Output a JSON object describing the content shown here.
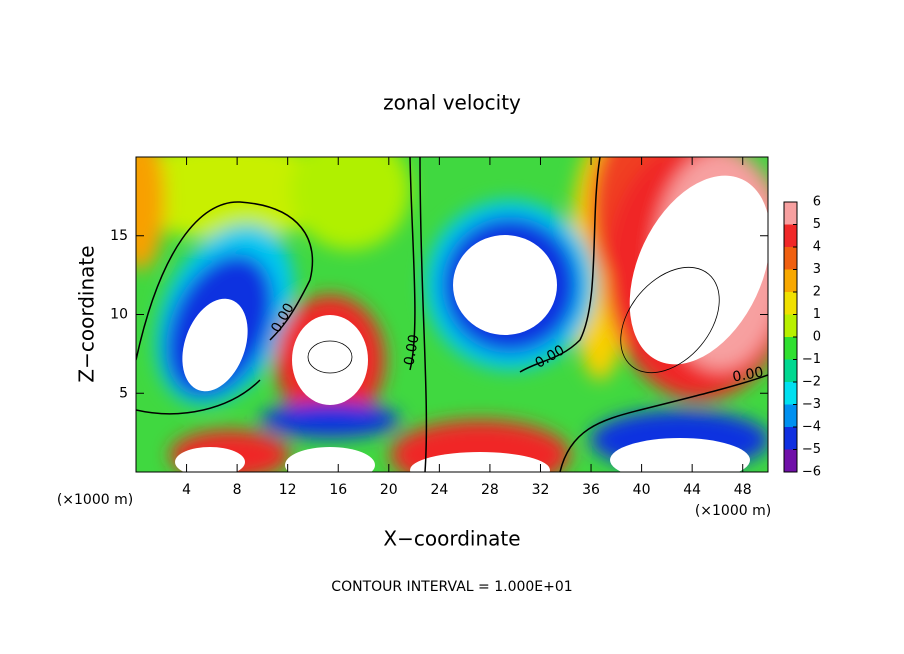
{
  "chart_data": {
    "type": "contour",
    "title": "zonal velocity",
    "x_label": "X−coordinate",
    "y_label": "Z−coordinate",
    "x_unit": "(×1000 m)",
    "y_unit": "(×1000 m)",
    "xlim": [
      0,
      50
    ],
    "ylim": [
      0,
      20
    ],
    "xticks": [
      4,
      8,
      12,
      16,
      20,
      24,
      28,
      32,
      36,
      40,
      44,
      48
    ],
    "yticks": [
      5,
      10,
      15
    ],
    "colorbar": {
      "lim": [
        -6,
        6
      ],
      "ticks": [
        6,
        5,
        4,
        3,
        2,
        1,
        0,
        {
          "value": -1,
          "label": "−1"
        },
        {
          "value": -2,
          "label": "−2"
        },
        {
          "value": -3,
          "label": "−3"
        },
        {
          "value": -4,
          "label": "−4"
        },
        {
          "value": -5,
          "label": "−5"
        },
        {
          "value": -6,
          "label": "−6"
        }
      ],
      "colors": [
        "#f7a0a0",
        "#f02828",
        "#f06010",
        "#f8a800",
        "#f0e000",
        "#b8f000",
        "#30e030",
        "#00d890",
        "#00e0f0",
        "#0090f0",
        "#1030e0",
        "#7010a8"
      ]
    },
    "contour_labels": [
      "0.00",
      "0.00",
      "0.00",
      "0.00"
    ],
    "footer": "CONTOUR INTERVAL = 1.000E+01"
  }
}
